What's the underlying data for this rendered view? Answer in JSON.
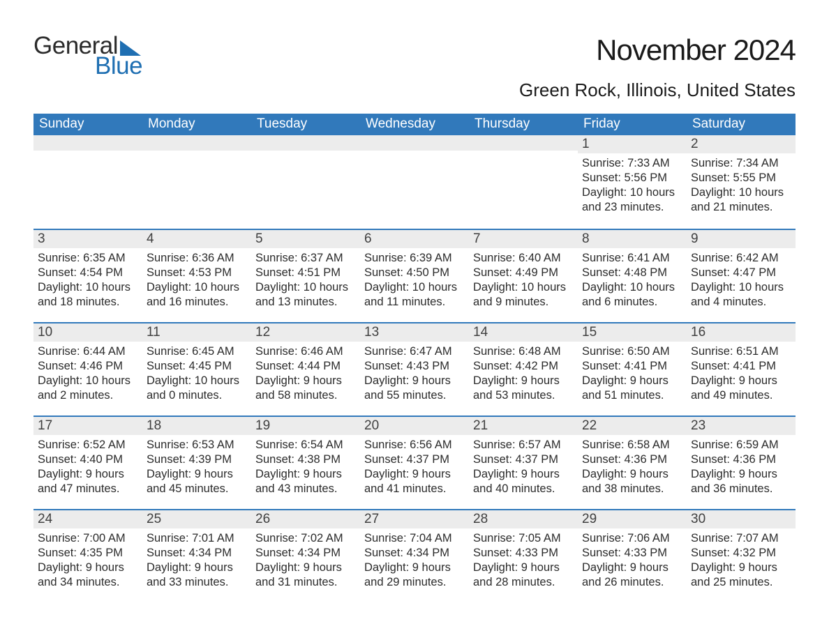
{
  "logo": {
    "text1": "General",
    "text2": "Blue",
    "brand_color": "#1f6fb2"
  },
  "title": "November 2024",
  "location": "Green Rock, Illinois, United States",
  "colors": {
    "header_bg": "#3179bb",
    "header_text": "#ffffff",
    "daynum_bg": "#ececec",
    "border": "#3179bb",
    "body_text": "#2b2b2b",
    "background": "#ffffff"
  },
  "typography": {
    "title_fontsize": 42,
    "location_fontsize": 26,
    "header_fontsize": 19,
    "daynum_fontsize": 19,
    "body_fontsize": 16.5
  },
  "day_names": [
    "Sunday",
    "Monday",
    "Tuesday",
    "Wednesday",
    "Thursday",
    "Friday",
    "Saturday"
  ],
  "weeks": [
    [
      null,
      null,
      null,
      null,
      null,
      {
        "n": "1",
        "sunrise": "Sunrise: 7:33 AM",
        "sunset": "Sunset: 5:56 PM",
        "day1": "Daylight: 10 hours",
        "day2": "and 23 minutes."
      },
      {
        "n": "2",
        "sunrise": "Sunrise: 7:34 AM",
        "sunset": "Sunset: 5:55 PM",
        "day1": "Daylight: 10 hours",
        "day2": "and 21 minutes."
      }
    ],
    [
      {
        "n": "3",
        "sunrise": "Sunrise: 6:35 AM",
        "sunset": "Sunset: 4:54 PM",
        "day1": "Daylight: 10 hours",
        "day2": "and 18 minutes."
      },
      {
        "n": "4",
        "sunrise": "Sunrise: 6:36 AM",
        "sunset": "Sunset: 4:53 PM",
        "day1": "Daylight: 10 hours",
        "day2": "and 16 minutes."
      },
      {
        "n": "5",
        "sunrise": "Sunrise: 6:37 AM",
        "sunset": "Sunset: 4:51 PM",
        "day1": "Daylight: 10 hours",
        "day2": "and 13 minutes."
      },
      {
        "n": "6",
        "sunrise": "Sunrise: 6:39 AM",
        "sunset": "Sunset: 4:50 PM",
        "day1": "Daylight: 10 hours",
        "day2": "and 11 minutes."
      },
      {
        "n": "7",
        "sunrise": "Sunrise: 6:40 AM",
        "sunset": "Sunset: 4:49 PM",
        "day1": "Daylight: 10 hours",
        "day2": "and 9 minutes."
      },
      {
        "n": "8",
        "sunrise": "Sunrise: 6:41 AM",
        "sunset": "Sunset: 4:48 PM",
        "day1": "Daylight: 10 hours",
        "day2": "and 6 minutes."
      },
      {
        "n": "9",
        "sunrise": "Sunrise: 6:42 AM",
        "sunset": "Sunset: 4:47 PM",
        "day1": "Daylight: 10 hours",
        "day2": "and 4 minutes."
      }
    ],
    [
      {
        "n": "10",
        "sunrise": "Sunrise: 6:44 AM",
        "sunset": "Sunset: 4:46 PM",
        "day1": "Daylight: 10 hours",
        "day2": "and 2 minutes."
      },
      {
        "n": "11",
        "sunrise": "Sunrise: 6:45 AM",
        "sunset": "Sunset: 4:45 PM",
        "day1": "Daylight: 10 hours",
        "day2": "and 0 minutes."
      },
      {
        "n": "12",
        "sunrise": "Sunrise: 6:46 AM",
        "sunset": "Sunset: 4:44 PM",
        "day1": "Daylight: 9 hours",
        "day2": "and 58 minutes."
      },
      {
        "n": "13",
        "sunrise": "Sunrise: 6:47 AM",
        "sunset": "Sunset: 4:43 PM",
        "day1": "Daylight: 9 hours",
        "day2": "and 55 minutes."
      },
      {
        "n": "14",
        "sunrise": "Sunrise: 6:48 AM",
        "sunset": "Sunset: 4:42 PM",
        "day1": "Daylight: 9 hours",
        "day2": "and 53 minutes."
      },
      {
        "n": "15",
        "sunrise": "Sunrise: 6:50 AM",
        "sunset": "Sunset: 4:41 PM",
        "day1": "Daylight: 9 hours",
        "day2": "and 51 minutes."
      },
      {
        "n": "16",
        "sunrise": "Sunrise: 6:51 AM",
        "sunset": "Sunset: 4:41 PM",
        "day1": "Daylight: 9 hours",
        "day2": "and 49 minutes."
      }
    ],
    [
      {
        "n": "17",
        "sunrise": "Sunrise: 6:52 AM",
        "sunset": "Sunset: 4:40 PM",
        "day1": "Daylight: 9 hours",
        "day2": "and 47 minutes."
      },
      {
        "n": "18",
        "sunrise": "Sunrise: 6:53 AM",
        "sunset": "Sunset: 4:39 PM",
        "day1": "Daylight: 9 hours",
        "day2": "and 45 minutes."
      },
      {
        "n": "19",
        "sunrise": "Sunrise: 6:54 AM",
        "sunset": "Sunset: 4:38 PM",
        "day1": "Daylight: 9 hours",
        "day2": "and 43 minutes."
      },
      {
        "n": "20",
        "sunrise": "Sunrise: 6:56 AM",
        "sunset": "Sunset: 4:37 PM",
        "day1": "Daylight: 9 hours",
        "day2": "and 41 minutes."
      },
      {
        "n": "21",
        "sunrise": "Sunrise: 6:57 AM",
        "sunset": "Sunset: 4:37 PM",
        "day1": "Daylight: 9 hours",
        "day2": "and 40 minutes."
      },
      {
        "n": "22",
        "sunrise": "Sunrise: 6:58 AM",
        "sunset": "Sunset: 4:36 PM",
        "day1": "Daylight: 9 hours",
        "day2": "and 38 minutes."
      },
      {
        "n": "23",
        "sunrise": "Sunrise: 6:59 AM",
        "sunset": "Sunset: 4:36 PM",
        "day1": "Daylight: 9 hours",
        "day2": "and 36 minutes."
      }
    ],
    [
      {
        "n": "24",
        "sunrise": "Sunrise: 7:00 AM",
        "sunset": "Sunset: 4:35 PM",
        "day1": "Daylight: 9 hours",
        "day2": "and 34 minutes."
      },
      {
        "n": "25",
        "sunrise": "Sunrise: 7:01 AM",
        "sunset": "Sunset: 4:34 PM",
        "day1": "Daylight: 9 hours",
        "day2": "and 33 minutes."
      },
      {
        "n": "26",
        "sunrise": "Sunrise: 7:02 AM",
        "sunset": "Sunset: 4:34 PM",
        "day1": "Daylight: 9 hours",
        "day2": "and 31 minutes."
      },
      {
        "n": "27",
        "sunrise": "Sunrise: 7:04 AM",
        "sunset": "Sunset: 4:34 PM",
        "day1": "Daylight: 9 hours",
        "day2": "and 29 minutes."
      },
      {
        "n": "28",
        "sunrise": "Sunrise: 7:05 AM",
        "sunset": "Sunset: 4:33 PM",
        "day1": "Daylight: 9 hours",
        "day2": "and 28 minutes."
      },
      {
        "n": "29",
        "sunrise": "Sunrise: 7:06 AM",
        "sunset": "Sunset: 4:33 PM",
        "day1": "Daylight: 9 hours",
        "day2": "and 26 minutes."
      },
      {
        "n": "30",
        "sunrise": "Sunrise: 7:07 AM",
        "sunset": "Sunset: 4:32 PM",
        "day1": "Daylight: 9 hours",
        "day2": "and 25 minutes."
      }
    ]
  ]
}
